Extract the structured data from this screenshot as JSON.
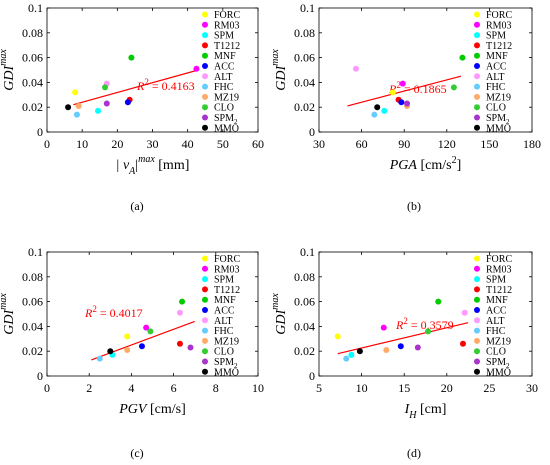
{
  "chart_data": [
    {
      "panel": "(a)",
      "type": "scatter",
      "ylabel": "GDI",
      "ylabel_sup": "max",
      "xlabel": "| v",
      "xlabel_sub": "A",
      "xlabel_tail": "|",
      "xlabel_sup": "max",
      "xlabel_unit": " [mm]",
      "xlim": [
        0,
        60
      ],
      "ylim": [
        0,
        0.1
      ],
      "xticks": [
        0,
        10,
        20,
        30,
        40,
        50,
        60
      ],
      "yticks": [
        0,
        0.02,
        0.04,
        0.06,
        0.08,
        0.1
      ],
      "ytick_labels": [
        "0",
        "0.02",
        "0.04",
        "0.06",
        "0.08",
        "0.1"
      ],
      "r2_label": "R",
      "r2_value": " = 0.4163",
      "trend": {
        "x": [
          7.5,
          43
        ],
        "y": [
          0.022,
          0.05
        ]
      },
      "points": [
        {
          "name": "FORC",
          "x": 8.0,
          "y": 0.032
        },
        {
          "name": "RM03",
          "x": 42.5,
          "y": 0.051
        },
        {
          "name": "SPM",
          "x": 14.5,
          "y": 0.017
        },
        {
          "name": "T1212",
          "x": 23.5,
          "y": 0.026
        },
        {
          "name": "MNF",
          "x": 24.0,
          "y": 0.06
        },
        {
          "name": "ACC",
          "x": 23.0,
          "y": 0.024
        },
        {
          "name": "ALT",
          "x": 17.0,
          "y": 0.039
        },
        {
          "name": "FHC",
          "x": 8.5,
          "y": 0.014
        },
        {
          "name": "MZ19",
          "x": 9.0,
          "y": 0.021
        },
        {
          "name": "CLO",
          "x": 16.5,
          "y": 0.036
        },
        {
          "name": "SPM2",
          "x": 17.0,
          "y": 0.023
        },
        {
          "name": "MMO",
          "x": 6.0,
          "y": 0.02
        }
      ]
    },
    {
      "panel": "(b)",
      "type": "scatter",
      "ylabel": "GDI",
      "ylabel_sup": "max",
      "xlabel": "PGA",
      "xlabel_unit": " [cm/s",
      "xlabel_unit_sup": "2",
      "xlabel_unit_tail": "]",
      "xlim": [
        30,
        180
      ],
      "ylim": [
        0,
        0.1
      ],
      "xticks": [
        30,
        60,
        90,
        120,
        150,
        180
      ],
      "yticks": [
        0,
        0.02,
        0.04,
        0.06,
        0.08,
        0.1
      ],
      "ytick_labels": [
        "0",
        "0.02",
        "0.04",
        "0.06",
        "0.08",
        "0.1"
      ],
      "r2_label": "R",
      "r2_value": " = 0.1865",
      "trend": {
        "x": [
          50,
          130
        ],
        "y": [
          0.021,
          0.045
        ]
      },
      "points": [
        {
          "name": "FORC",
          "x": 82,
          "y": 0.032
        },
        {
          "name": "RM03",
          "x": 89,
          "y": 0.039
        },
        {
          "name": "SPM",
          "x": 76,
          "y": 0.017
        },
        {
          "name": "T1212",
          "x": 86,
          "y": 0.026
        },
        {
          "name": "MNF",
          "x": 131,
          "y": 0.06
        },
        {
          "name": "ACC",
          "x": 88,
          "y": 0.024
        },
        {
          "name": "ALT",
          "x": 56,
          "y": 0.051
        },
        {
          "name": "FHC",
          "x": 69,
          "y": 0.014
        },
        {
          "name": "MZ19",
          "x": 92,
          "y": 0.021
        },
        {
          "name": "CLO",
          "x": 125,
          "y": 0.036
        },
        {
          "name": "SPM2",
          "x": 92,
          "y": 0.023
        },
        {
          "name": "MMO",
          "x": 71,
          "y": 0.02
        }
      ]
    },
    {
      "panel": "(c)",
      "type": "scatter",
      "ylabel": "GDI",
      "ylabel_sup": "max",
      "xlabel": "PGV",
      "xlabel_unit": " [cm/s]",
      "xlim": [
        0,
        10
      ],
      "ylim": [
        0,
        0.1
      ],
      "xticks": [
        0,
        2,
        4,
        6,
        8,
        10
      ],
      "yticks": [
        0,
        0.02,
        0.04,
        0.06,
        0.08,
        0.1
      ],
      "ytick_labels": [
        "0",
        "0.02",
        "0.04",
        "0.06",
        "0.08",
        "0.1"
      ],
      "r2_label": "R",
      "r2_value": " = 0.4017",
      "trend": {
        "x": [
          2.1,
          7.0
        ],
        "y": [
          0.013,
          0.044
        ]
      },
      "points": [
        {
          "name": "FORC",
          "x": 3.8,
          "y": 0.032
        },
        {
          "name": "RM03",
          "x": 4.7,
          "y": 0.039
        },
        {
          "name": "SPM",
          "x": 3.1,
          "y": 0.017
        },
        {
          "name": "T1212",
          "x": 6.3,
          "y": 0.026
        },
        {
          "name": "MNF",
          "x": 6.4,
          "y": 0.06
        },
        {
          "name": "ACC",
          "x": 4.5,
          "y": 0.024
        },
        {
          "name": "ALT",
          "x": 6.3,
          "y": 0.051
        },
        {
          "name": "FHC",
          "x": 2.5,
          "y": 0.014
        },
        {
          "name": "MZ19",
          "x": 3.8,
          "y": 0.021
        },
        {
          "name": "CLO",
          "x": 4.9,
          "y": 0.036
        },
        {
          "name": "SPM2",
          "x": 6.8,
          "y": 0.023
        },
        {
          "name": "MMO",
          "x": 3.0,
          "y": 0.02
        }
      ]
    },
    {
      "panel": "(d)",
      "type": "scatter",
      "ylabel": "GDI",
      "ylabel_sup": "max",
      "xlabel": "I",
      "xlabel_sub": "H",
      "xlabel_unit": " [cm]",
      "xlim": [
        5,
        30
      ],
      "ylim": [
        0,
        0.1
      ],
      "xticks": [
        5,
        10,
        15,
        20,
        25,
        30
      ],
      "yticks": [
        0,
        0.02,
        0.04,
        0.06,
        0.08,
        0.1
      ],
      "ytick_labels": [
        "0",
        "0.02",
        "0.04",
        "0.06",
        "0.08",
        "0.1"
      ],
      "r2_label": "R",
      "r2_value": " = 0.3579",
      "trend": {
        "x": [
          7.2,
          22.5
        ],
        "y": [
          0.018,
          0.043
        ]
      },
      "points": [
        {
          "name": "FORC",
          "x": 7.2,
          "y": 0.032
        },
        {
          "name": "RM03",
          "x": 12.6,
          "y": 0.039
        },
        {
          "name": "SPM",
          "x": 8.8,
          "y": 0.017
        },
        {
          "name": "T1212",
          "x": 21.9,
          "y": 0.026
        },
        {
          "name": "MNF",
          "x": 19.0,
          "y": 0.06
        },
        {
          "name": "ACC",
          "x": 14.6,
          "y": 0.024
        },
        {
          "name": "ALT",
          "x": 22.1,
          "y": 0.051
        },
        {
          "name": "FHC",
          "x": 8.2,
          "y": 0.014
        },
        {
          "name": "MZ19",
          "x": 12.9,
          "y": 0.021
        },
        {
          "name": "CLO",
          "x": 17.8,
          "y": 0.036
        },
        {
          "name": "SPM2",
          "x": 16.6,
          "y": 0.023
        },
        {
          "name": "MMO",
          "x": 9.8,
          "y": 0.02
        }
      ]
    }
  ],
  "legend": [
    {
      "key": "FORC",
      "label": "FORC",
      "color": "#ffff00"
    },
    {
      "key": "RM03",
      "label": "RM03",
      "color": "#ff00ff"
    },
    {
      "key": "SPM",
      "label": "SPM",
      "color": "#00ffff"
    },
    {
      "key": "T1212",
      "label": "T1212",
      "color": "#ff0000"
    },
    {
      "key": "MNF",
      "label": "MNF",
      "color": "#00cc00"
    },
    {
      "key": "ACC",
      "label": "ACC",
      "color": "#0000ff"
    },
    {
      "key": "ALT",
      "label": "ALT",
      "color": "#ff99ff"
    },
    {
      "key": "FHC",
      "label": "FHC",
      "color": "#66ccff"
    },
    {
      "key": "MZ19",
      "label": "MZ19",
      "color": "#ffaa66"
    },
    {
      "key": "CLO",
      "label": "CLO",
      "color": "#33cc33"
    },
    {
      "key": "SPM2",
      "label": "SPM",
      "label_sub": "2",
      "color": "#aa33cc"
    },
    {
      "key": "MMO",
      "label": "MMO",
      "color": "#000000"
    }
  ],
  "colors": {
    "trend_line": "#ff0000",
    "r2_text": "#ff0000",
    "axis": "#000000",
    "grid": "#e6e6e6"
  }
}
